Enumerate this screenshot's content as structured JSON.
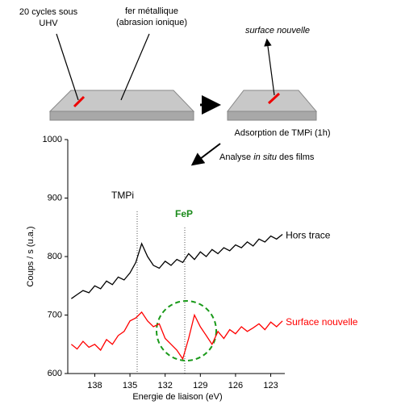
{
  "diagram": {
    "cycles_label": [
      "20 cycles sous",
      "UHV"
    ],
    "iron_label": [
      "fer métallique",
      "(abrasion ionique)"
    ],
    "surface_label": "surface nouvelle",
    "adsorption_label": "Adsorption de TMPi (1h)",
    "analysis_label": [
      "Analyse",
      "in situ",
      "des films"
    ]
  },
  "chart_data": {
    "type": "line",
    "x_label": "Energie de liaison (eV)",
    "y_label": "Coups / s (u.a.)",
    "annotations": [
      "TMPi",
      "FeP"
    ],
    "x": [
      140,
      139.5,
      139,
      138.5,
      138,
      137.5,
      137,
      136.5,
      136,
      135.5,
      135,
      134.5,
      134,
      133.5,
      133,
      132.5,
      132,
      131.5,
      131,
      130.5,
      130,
      129.5,
      129,
      128.5,
      128,
      127.5,
      127,
      126.5,
      126,
      125.5,
      125,
      124.5,
      124,
      123.5,
      123,
      122.5,
      122
    ],
    "series": [
      {
        "name": "Hors trace",
        "color": "#000000",
        "values": [
          728,
          735,
          742,
          738,
          750,
          745,
          758,
          752,
          765,
          760,
          772,
          790,
          822,
          800,
          785,
          780,
          792,
          785,
          795,
          790,
          805,
          795,
          808,
          800,
          812,
          805,
          815,
          810,
          820,
          815,
          825,
          818,
          830,
          825,
          835,
          830,
          838
        ]
      },
      {
        "name": "Surface nouvelle",
        "color": "#ff0000",
        "values": [
          650,
          642,
          655,
          645,
          650,
          640,
          658,
          650,
          665,
          672,
          690,
          695,
          705,
          690,
          680,
          685,
          660,
          650,
          640,
          625,
          660,
          700,
          680,
          665,
          650,
          672,
          660,
          675,
          668,
          680,
          672,
          678,
          685,
          675,
          688,
          680,
          690
        ]
      }
    ],
    "xlim": [
      140.3,
      121.8
    ],
    "xticks": [
      138,
      135,
      132,
      129,
      126,
      123
    ],
    "ylim": [
      600,
      1000
    ],
    "yticks": [
      600,
      700,
      800,
      900,
      1000
    ]
  }
}
